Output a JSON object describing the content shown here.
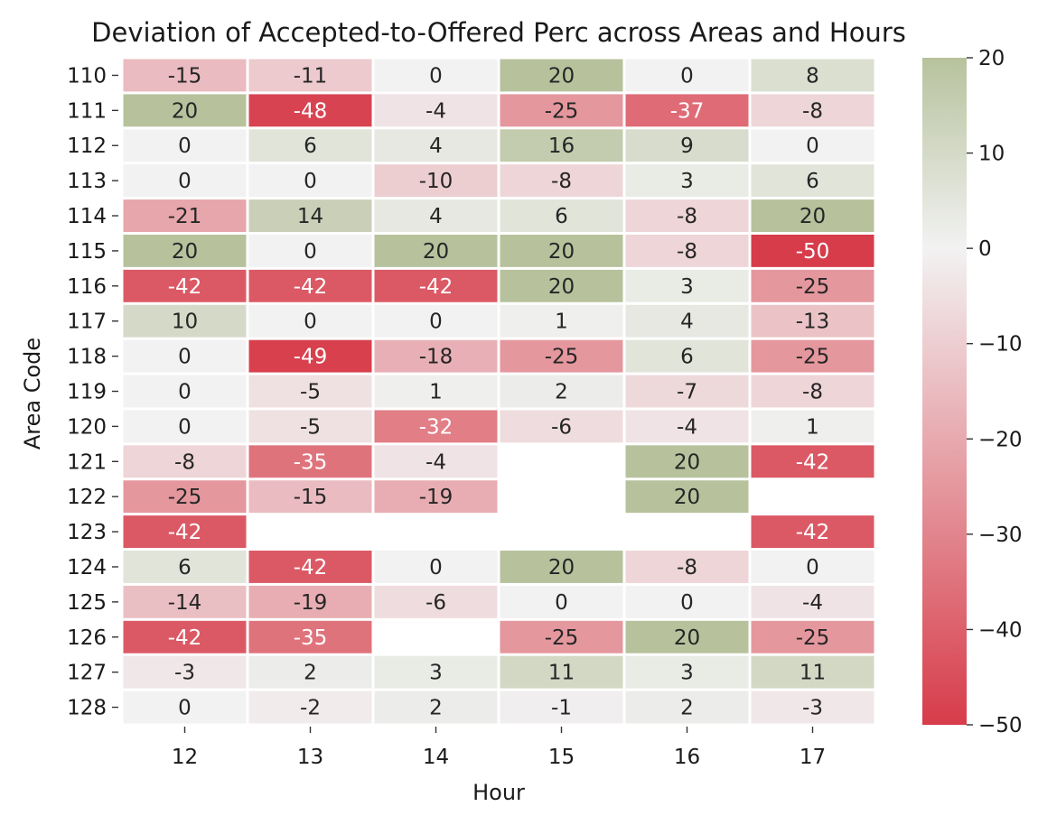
{
  "chart_data": {
    "type": "heatmap",
    "title": "Deviation of Accepted-to-Offered Perc across Areas and Hours",
    "xlabel": "Hour",
    "ylabel": "Area Code",
    "x_categories": [
      "12",
      "13",
      "14",
      "15",
      "16",
      "17"
    ],
    "y_categories": [
      "110",
      "111",
      "112",
      "113",
      "114",
      "115",
      "116",
      "117",
      "118",
      "119",
      "120",
      "121",
      "122",
      "123",
      "124",
      "125",
      "126",
      "127",
      "128"
    ],
    "values": [
      [
        -15,
        -11,
        0,
        20,
        0,
        8
      ],
      [
        20,
        -48,
        -4,
        -25,
        -37,
        -8
      ],
      [
        0,
        6,
        4,
        16,
        9,
        0
      ],
      [
        0,
        0,
        -10,
        -8,
        3,
        6
      ],
      [
        -21,
        14,
        4,
        6,
        -8,
        20
      ],
      [
        20,
        0,
        20,
        20,
        -8,
        -50
      ],
      [
        -42,
        -42,
        -42,
        20,
        3,
        -25
      ],
      [
        10,
        0,
        0,
        1,
        4,
        -13
      ],
      [
        0,
        -49,
        -18,
        -25,
        6,
        -25
      ],
      [
        0,
        -5,
        1,
        2,
        -7,
        -8
      ],
      [
        0,
        -5,
        -32,
        -6,
        -4,
        1
      ],
      [
        -8,
        -35,
        -4,
        null,
        20,
        -42
      ],
      [
        -25,
        -15,
        -19,
        null,
        20,
        null
      ],
      [
        -42,
        null,
        null,
        null,
        null,
        -42
      ],
      [
        6,
        -42,
        0,
        20,
        -8,
        0
      ],
      [
        -14,
        -19,
        -6,
        0,
        0,
        -4
      ],
      [
        -42,
        -35,
        null,
        -25,
        20,
        -25
      ],
      [
        -3,
        2,
        3,
        11,
        3,
        11
      ],
      [
        0,
        -2,
        2,
        -1,
        2,
        -3
      ]
    ],
    "value_range": [
      -50,
      20
    ],
    "colorbar_ticks": [
      "20",
      "10",
      "0",
      "−10",
      "−20",
      "−30",
      "−40",
      "−50"
    ],
    "colorbar_tick_values": [
      20,
      10,
      0,
      -10,
      -20,
      -30,
      -40,
      -50
    ],
    "colormap": {
      "negative_color": "#d73c4a",
      "zero_color": "#f2f2f2",
      "positive_color": "#b7c29d"
    },
    "missing_cells": "blank",
    "grid": false,
    "legend": "colorbar-right"
  }
}
